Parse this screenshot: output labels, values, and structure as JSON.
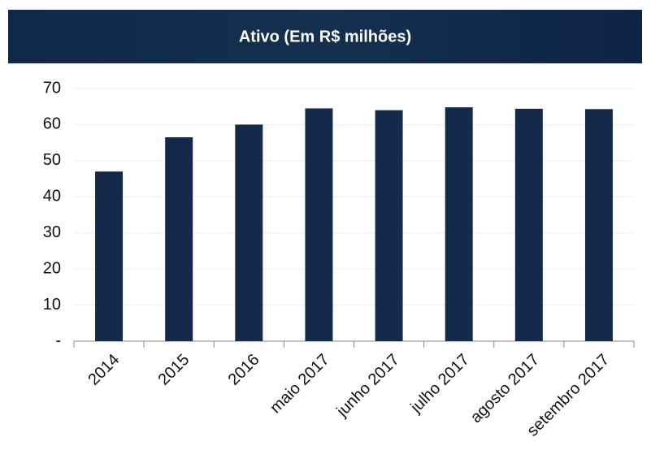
{
  "chart_data": {
    "type": "bar",
    "title": "Ativo (Em R$ milhões)",
    "categories": [
      "2014",
      "2015",
      "2016",
      "maio 2017",
      "junho 2017",
      "julho 2017",
      "agosto 2017",
      "setembro 2017"
    ],
    "values": [
      47,
      56.5,
      60,
      64.5,
      64,
      64.8,
      64.4,
      64.3
    ],
    "color": "#15294a",
    "ylim": [
      0,
      70
    ],
    "yticks": [
      {
        "value": 0,
        "label": "-"
      },
      10,
      20,
      30,
      40,
      50,
      60,
      70
    ],
    "grid": true
  }
}
